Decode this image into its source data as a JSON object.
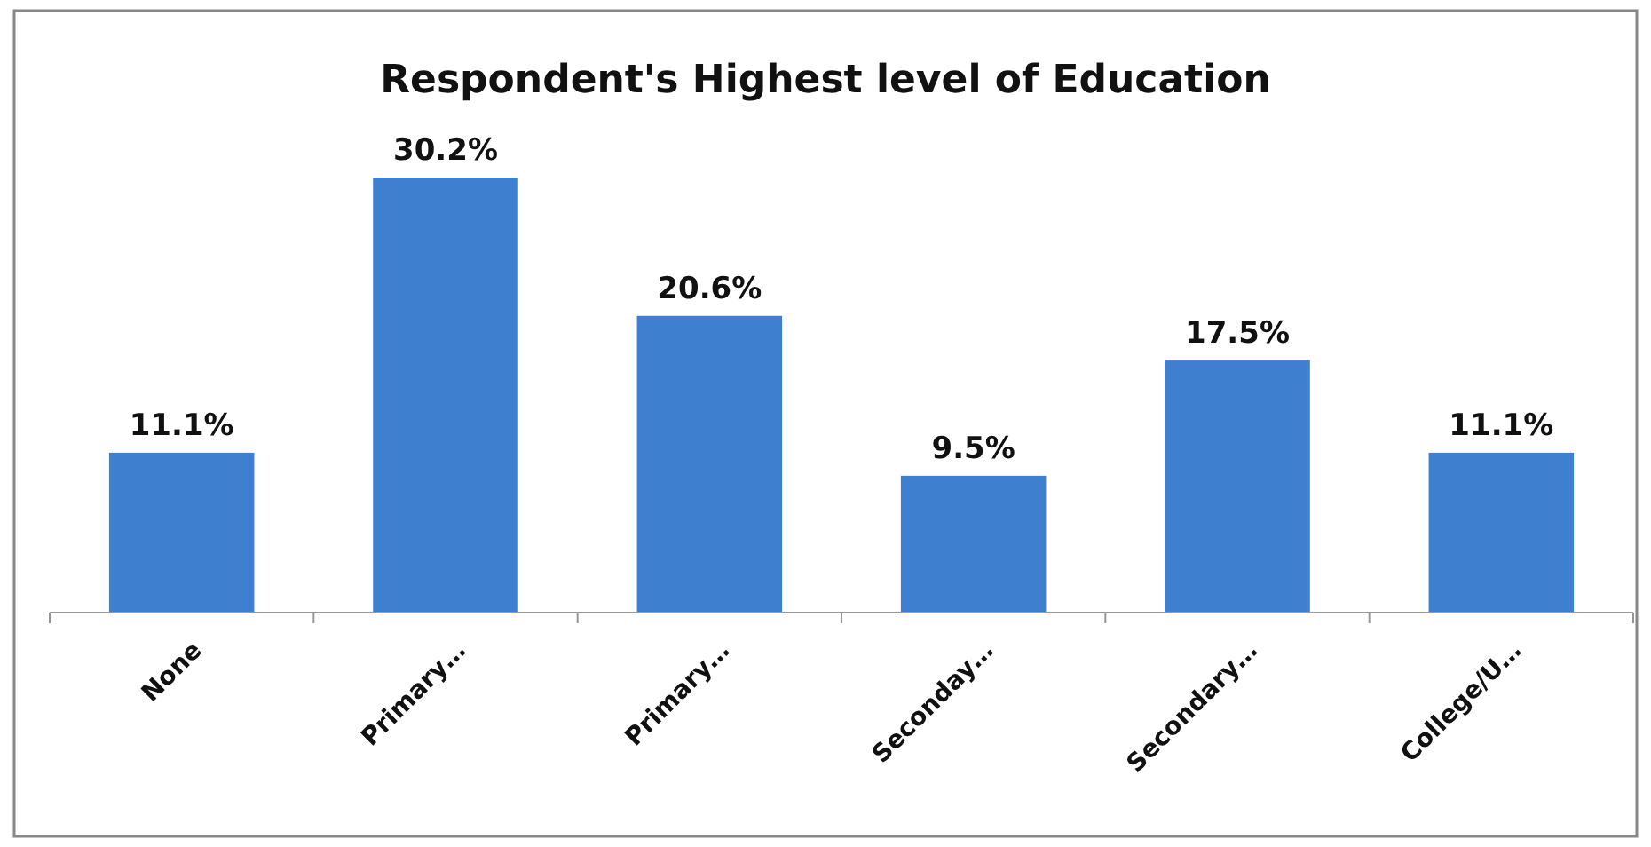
{
  "chart_data": {
    "type": "bar",
    "title": "Respondent's Highest level of Education",
    "categories": [
      "None",
      "Primary…",
      "Primary…",
      "Seconday…",
      "Secondary…",
      "College/U…"
    ],
    "values": [
      11.1,
      30.2,
      20.6,
      9.5,
      17.5,
      11.1
    ],
    "value_labels": [
      "11.1%",
      "30.2%",
      "20.6%",
      "9.5%",
      "17.5%",
      "11.1%"
    ],
    "color": "#3f7fd0"
  }
}
